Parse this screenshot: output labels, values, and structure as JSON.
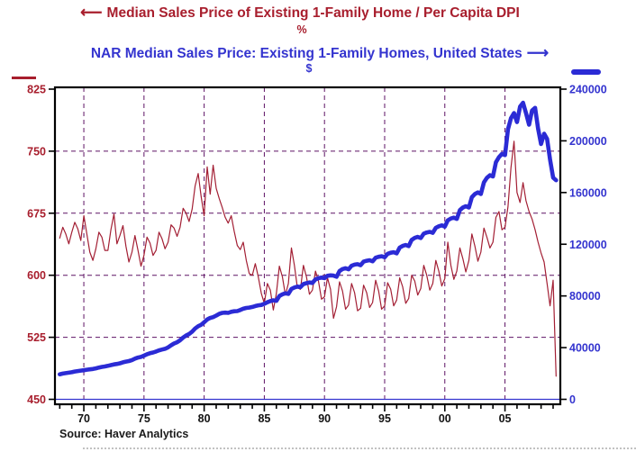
{
  "header": {
    "title1_arrow": "⟵",
    "title1": "Median Sales Price of Existing 1-Family Home / Per Capita DPI",
    "title1_unit": "%",
    "title2": "NAR Median Sales Price: Existing 1-Family Homes, United States",
    "title2_arrow": "⟶",
    "title2_unit": "$"
  },
  "footer": {
    "source": "Source: Haver Analytics"
  },
  "colors": {
    "red": "#a81e2d",
    "red_line": "#a31f34",
    "blue": "#3434cf",
    "blue_line": "#2b2bd5",
    "grid": "#5e1365",
    "frame": "#000000",
    "x_label": "#111111"
  },
  "chart_data": {
    "type": "line",
    "title": "Median Sales Price of Existing 1-Family Home / Per Capita DPI (%) vs NAR Median Sales Price, Existing 1-Family Homes, United States ($)",
    "x_axis": {
      "min": 1967.6,
      "max": 2009.6,
      "major_tick_years": [
        1970,
        1975,
        1980,
        1985,
        1990,
        1995,
        2000,
        2005
      ],
      "major_tick_labels": [
        "70",
        "75",
        "80",
        "85",
        "90",
        "95",
        "00",
        "05"
      ],
      "minor_tick_start": 1968,
      "minor_tick_end": 2009,
      "minor_tick_step": 1
    },
    "left_axis": {
      "unit": "%",
      "min": 450,
      "max": 825,
      "ticks": [
        825,
        750,
        675,
        600,
        525,
        450
      ]
    },
    "right_axis": {
      "unit": "$",
      "min": 0,
      "max": 240000,
      "ticks": [
        240000,
        200000,
        160000,
        120000,
        80000,
        40000,
        0
      ],
      "zero_line": true
    },
    "gridlines": {
      "horizontal_left_values": [
        750,
        675,
        600,
        525
      ],
      "vertical_years": [
        1970,
        1975,
        1980,
        1985,
        1990,
        1995,
        2000,
        2005
      ],
      "style": "dashed"
    },
    "legend_position": "top",
    "series": [
      {
        "name": "Median Sales Price of Existing 1-Family Home / Per Capita DPI",
        "axis": "left",
        "unit": "%",
        "line_width": 1.2,
        "x_start": 1968.0,
        "x_step": 0.25,
        "values": [
          645,
          658,
          650,
          638,
          652,
          664,
          656,
          642,
          672,
          650,
          628,
          618,
          632,
          652,
          646,
          630,
          630,
          655,
          674,
          638,
          648,
          660,
          635,
          616,
          628,
          648,
          630,
          611,
          624,
          646,
          639,
          624,
          630,
          652,
          644,
          632,
          640,
          661,
          657,
          647,
          658,
          681,
          675,
          665,
          680,
          708,
          723,
          695,
          672,
          731,
          698,
          733,
          705,
          693,
          682,
          670,
          663,
          672,
          653,
          636,
          631,
          640,
          618,
          602,
          600,
          614,
          598,
          578,
          566,
          590,
          582,
          558,
          578,
          611,
          598,
          576,
          590,
          633,
          612,
          585,
          583,
          612,
          598,
          577,
          582,
          605,
          593,
          571,
          574,
          597,
          583,
          548,
          562,
          592,
          581,
          559,
          564,
          590,
          579,
          557,
          560,
          588,
          579,
          561,
          567,
          594,
          581,
          559,
          563,
          591,
          583,
          563,
          570,
          597,
          586,
          566,
          572,
          600,
          593,
          576,
          584,
          612,
          600,
          582,
          590,
          618,
          605,
          587,
          596,
          640,
          612,
          595,
          605,
          633,
          620,
          604,
          618,
          650,
          635,
          617,
          628,
          657,
          646,
          633,
          640,
          670,
          677,
          655,
          658,
          683,
          730,
          762,
          700,
          688,
          712,
          690,
          677,
          668,
          655,
          640,
          627,
          616,
          590,
          563,
          594,
          478
        ]
      },
      {
        "name": "NAR Median Sales Price: Existing 1-Family Homes, United States",
        "axis": "right",
        "unit": "$",
        "line_width": 4.6,
        "x_start": 1968.0,
        "x_step": 0.25,
        "values": [
          19400,
          19900,
          20300,
          20600,
          21000,
          21500,
          21900,
          22200,
          22500,
          22900,
          23200,
          23500,
          24000,
          24600,
          25100,
          25400,
          25900,
          26500,
          27000,
          27400,
          27900,
          28600,
          29200,
          29600,
          30400,
          31500,
          32300,
          32800,
          33800,
          34900,
          35700,
          36200,
          37000,
          37900,
          38500,
          39100,
          40200,
          41800,
          43200,
          44200,
          45700,
          47800,
          49400,
          50500,
          52400,
          54800,
          56600,
          57700,
          59600,
          61800,
          63000,
          63600,
          64800,
          66100,
          66900,
          67100,
          66900,
          67700,
          68100,
          68300,
          69100,
          70100,
          70700,
          71000,
          71500,
          72200,
          72700,
          73000,
          73900,
          75100,
          76000,
          76600,
          76200,
          79900,
          81200,
          82100,
          81600,
          85400,
          86500,
          87200,
          86800,
          89200,
          89900,
          90400,
          90000,
          92800,
          93700,
          94200,
          93800,
          95600,
          95900,
          95700,
          94800,
          99300,
          100800,
          101400,
          100600,
          103400,
          104200,
          104600,
          103800,
          106500,
          107200,
          107600,
          106800,
          109600,
          110300,
          110700,
          109900,
          112600,
          113400,
          113800,
          112900,
          117400,
          118700,
          119400,
          118600,
          123400,
          124900,
          125700,
          124800,
          128200,
          129100,
          129600,
          128800,
          132700,
          133900,
          134600,
          133600,
          138500,
          139900,
          140600,
          139600,
          146400,
          148400,
          149400,
          148400,
          156400,
          158900,
          160100,
          158900,
          167900,
          171400,
          173400,
          172400,
          183400,
          187400,
          189900,
          188900,
          209000,
          217500,
          221500,
          214500,
          226500,
          229500,
          221500,
          212500,
          223500,
          225500,
          209500,
          197500,
          205500,
          201500,
          185500,
          171500,
          169500
        ]
      }
    ]
  }
}
